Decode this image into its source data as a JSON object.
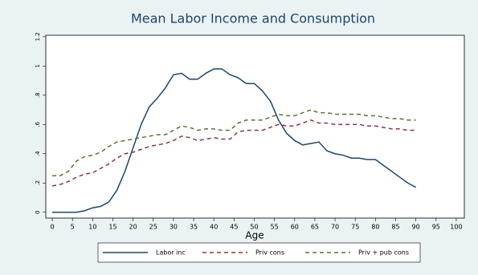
{
  "chart_data": {
    "type": "line",
    "title": "Mean Labor Income and Consumption",
    "x_label": "Age",
    "x": [
      0,
      2,
      4,
      6,
      8,
      10,
      12,
      14,
      16,
      18,
      20,
      22,
      24,
      26,
      28,
      30,
      32,
      34,
      36,
      38,
      40,
      42,
      44,
      46,
      48,
      50,
      52,
      54,
      56,
      58,
      60,
      62,
      64,
      66,
      68,
      70,
      72,
      74,
      76,
      78,
      80,
      82,
      84,
      86,
      88,
      90
    ],
    "series": [
      {
        "name": "Labor inc",
        "color": "#1a476f",
        "dash": false,
        "values": [
          0,
          0,
          0,
          0,
          0.01,
          0.03,
          0.04,
          0.07,
          0.15,
          0.28,
          0.44,
          0.6,
          0.72,
          0.78,
          0.85,
          0.94,
          0.95,
          0.91,
          0.91,
          0.95,
          0.98,
          0.98,
          0.94,
          0.92,
          0.88,
          0.88,
          0.83,
          0.76,
          0.63,
          0.54,
          0.49,
          0.46,
          0.47,
          0.48,
          0.42,
          0.4,
          0.39,
          0.37,
          0.37,
          0.36,
          0.36,
          0.32,
          0.28,
          0.24,
          0.2,
          0.17
        ]
      },
      {
        "name": "Priv cons",
        "color": "#90353b",
        "dash": true,
        "values": [
          0.18,
          0.19,
          0.21,
          0.24,
          0.26,
          0.27,
          0.3,
          0.33,
          0.37,
          0.4,
          0.41,
          0.43,
          0.45,
          0.46,
          0.47,
          0.49,
          0.52,
          0.51,
          0.49,
          0.5,
          0.51,
          0.5,
          0.5,
          0.55,
          0.56,
          0.56,
          0.56,
          0.58,
          0.6,
          0.59,
          0.59,
          0.61,
          0.63,
          0.61,
          0.61,
          0.6,
          0.6,
          0.6,
          0.6,
          0.59,
          0.59,
          0.58,
          0.57,
          0.57,
          0.56,
          0.56
        ]
      },
      {
        "name": "Priv + pub cons",
        "color": "#55752f",
        "dash": true,
        "values": [
          0.25,
          0.25,
          0.28,
          0.35,
          0.38,
          0.39,
          0.41,
          0.45,
          0.48,
          0.49,
          0.5,
          0.51,
          0.52,
          0.53,
          0.53,
          0.56,
          0.59,
          0.58,
          0.56,
          0.57,
          0.57,
          0.56,
          0.56,
          0.61,
          0.63,
          0.63,
          0.63,
          0.65,
          0.67,
          0.66,
          0.66,
          0.68,
          0.7,
          0.68,
          0.68,
          0.67,
          0.67,
          0.67,
          0.67,
          0.66,
          0.66,
          0.65,
          0.64,
          0.64,
          0.63,
          0.63
        ]
      }
    ],
    "xlim": [
      -1.6,
      102
    ],
    "xticks": [
      0,
      5,
      10,
      15,
      20,
      25,
      30,
      35,
      40,
      45,
      50,
      55,
      60,
      65,
      70,
      75,
      80,
      85,
      90,
      95,
      100
    ],
    "ylim": [
      -0.04,
      1.21
    ],
    "yticks": [
      0,
      {
        "value": 0.2,
        "label": ".2"
      },
      {
        "value": 0.4,
        "label": ".4"
      },
      {
        "value": 0.6,
        "label": ".6"
      },
      {
        "value": 0.8,
        "label": ".8"
      },
      1,
      1.2
    ],
    "grid": false,
    "legend": "bottom"
  }
}
